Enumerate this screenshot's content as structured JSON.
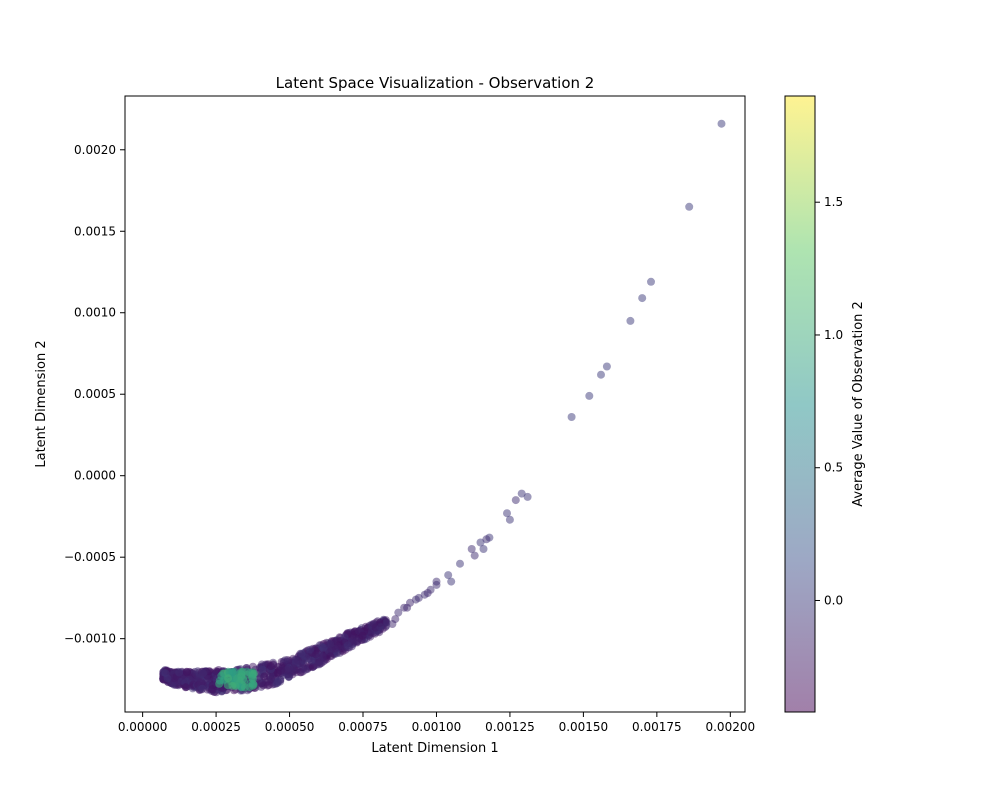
{
  "chart_data": {
    "type": "scatter",
    "title": "Latent Space Visualization - Observation 2",
    "xlabel": "Latent Dimension 1",
    "ylabel": "Latent Dimension 2",
    "xlim": [
      -6e-05,
      0.00205
    ],
    "ylim": [
      -0.00145,
      0.00233
    ],
    "xticks": [
      0.0,
      0.00025,
      0.0005,
      0.00075,
      0.001,
      0.00125,
      0.0015,
      0.00175,
      0.002
    ],
    "xtick_labels": [
      "0.00000",
      "0.00025",
      "0.00050",
      "0.00075",
      "0.00100",
      "0.00125",
      "0.00150",
      "0.00175",
      "0.00200"
    ],
    "yticks": [
      -0.001,
      -0.0005,
      0.0,
      0.0005,
      0.001,
      0.0015,
      0.002
    ],
    "ytick_labels": [
      "−0.0010",
      "−0.0005",
      "0.0000",
      "0.0005",
      "0.0010",
      "0.0015",
      "0.0020"
    ],
    "grid": false,
    "colormap": "viridis",
    "marker_alpha": 0.5,
    "colorbar": {
      "label": "Average Value of Observation 2",
      "range": [
        -0.42,
        1.9
      ],
      "ticks": [
        0.0,
        0.5,
        1.0,
        1.5
      ],
      "tick_labels": [
        "0.0",
        "0.5",
        "1.0",
        "1.5"
      ]
    },
    "points": [
      {
        "x": 0.00197,
        "y": 0.00216,
        "c": 0.0
      },
      {
        "x": 0.00186,
        "y": 0.00165,
        "c": 0.0
      },
      {
        "x": 0.00173,
        "y": 0.00119,
        "c": 0.0
      },
      {
        "x": 0.0017,
        "y": 0.00109,
        "c": 0.0
      },
      {
        "x": 0.00166,
        "y": 0.00095,
        "c": 0.0
      },
      {
        "x": 0.00158,
        "y": 0.00067,
        "c": 0.0
      },
      {
        "x": 0.00156,
        "y": 0.00062,
        "c": 0.0
      },
      {
        "x": 0.00152,
        "y": 0.00049,
        "c": 0.0
      },
      {
        "x": 0.00146,
        "y": 0.00036,
        "c": 0.0
      },
      {
        "x": 0.00131,
        "y": -0.00013,
        "c": -0.05
      },
      {
        "x": 0.00129,
        "y": -0.00011,
        "c": -0.05
      },
      {
        "x": 0.00127,
        "y": -0.00015,
        "c": -0.1
      },
      {
        "x": 0.00124,
        "y": -0.00023,
        "c": -0.05
      },
      {
        "x": 0.00125,
        "y": -0.00027,
        "c": -0.05
      },
      {
        "x": 0.00118,
        "y": -0.00038,
        "c": -0.05
      },
      {
        "x": 0.00117,
        "y": -0.00039,
        "c": -0.1
      },
      {
        "x": 0.00115,
        "y": -0.00041,
        "c": -0.05
      },
      {
        "x": 0.00116,
        "y": -0.00045,
        "c": -0.05
      },
      {
        "x": 0.00112,
        "y": -0.00045,
        "c": -0.1
      },
      {
        "x": 0.00113,
        "y": -0.00049,
        "c": -0.1
      },
      {
        "x": 0.00108,
        "y": -0.00054,
        "c": -0.05
      },
      {
        "x": 0.00104,
        "y": -0.00061,
        "c": -0.05
      },
      {
        "x": 0.00105,
        "y": -0.00065,
        "c": -0.05
      },
      {
        "x": 0.001,
        "y": -0.00065,
        "c": -0.1
      },
      {
        "x": 0.001,
        "y": -0.00067,
        "c": -0.1
      },
      {
        "x": 0.00098,
        "y": -0.0007,
        "c": -0.1
      },
      {
        "x": 0.00097,
        "y": -0.00072,
        "c": -0.15
      },
      {
        "x": 0.00096,
        "y": -0.00073,
        "c": -0.1
      },
      {
        "x": 0.00094,
        "y": -0.00075,
        "c": -0.1
      },
      {
        "x": 0.00093,
        "y": -0.00076,
        "c": -0.1
      },
      {
        "x": 0.00091,
        "y": -0.00078,
        "c": -0.15
      },
      {
        "x": 0.0009,
        "y": -0.00081,
        "c": -0.15
      },
      {
        "x": 0.00089,
        "y": -0.00081,
        "c": -0.15
      },
      {
        "x": 0.00087,
        "y": -0.00084,
        "c": -0.1
      },
      {
        "x": 0.00086,
        "y": -0.00088,
        "c": -0.15
      },
      {
        "x": 0.00085,
        "y": -0.00091,
        "c": -0.15
      },
      {
        "x": 0.00083,
        "y": -0.0009,
        "c": -0.1
      },
      {
        "x": 0.00081,
        "y": -0.00093,
        "c": -0.15
      }
    ],
    "cloud": {
      "note": "dense band of markers along the curve from x 0.00007 to 0.00082",
      "curve_x": [
        7e-05,
        0.0001,
        0.00015,
        0.0002,
        0.00025,
        0.0003,
        0.00035,
        0.0004,
        0.00045,
        0.0005,
        0.00055,
        0.0006,
        0.00065,
        0.0007,
        0.00075,
        0.0008,
        0.00083
      ],
      "curve_y": [
        -0.00122,
        -0.00124,
        -0.00125,
        -0.00126,
        -0.00126,
        -0.00126,
        -0.00125,
        -0.00123,
        -0.00121,
        -0.00118,
        -0.00114,
        -0.0011,
        -0.00106,
        -0.00101,
        -0.00097,
        -0.00093,
        -0.0009
      ],
      "thickness": [
        3e-05,
        4e-05,
        5e-05,
        6e-05,
        7e-05,
        7e-05,
        7e-05,
        7e-05,
        7e-05,
        6e-05,
        6e-05,
        6e-05,
        5e-05,
        5e-05,
        4e-05,
        4e-05,
        3e-05
      ],
      "count": 900,
      "color_value": -0.2,
      "hot_spot": {
        "x": [
          0.00026,
          0.00038
        ],
        "y": [
          -0.0013,
          -0.0012
        ],
        "c": 0.95,
        "count": 60
      }
    }
  }
}
